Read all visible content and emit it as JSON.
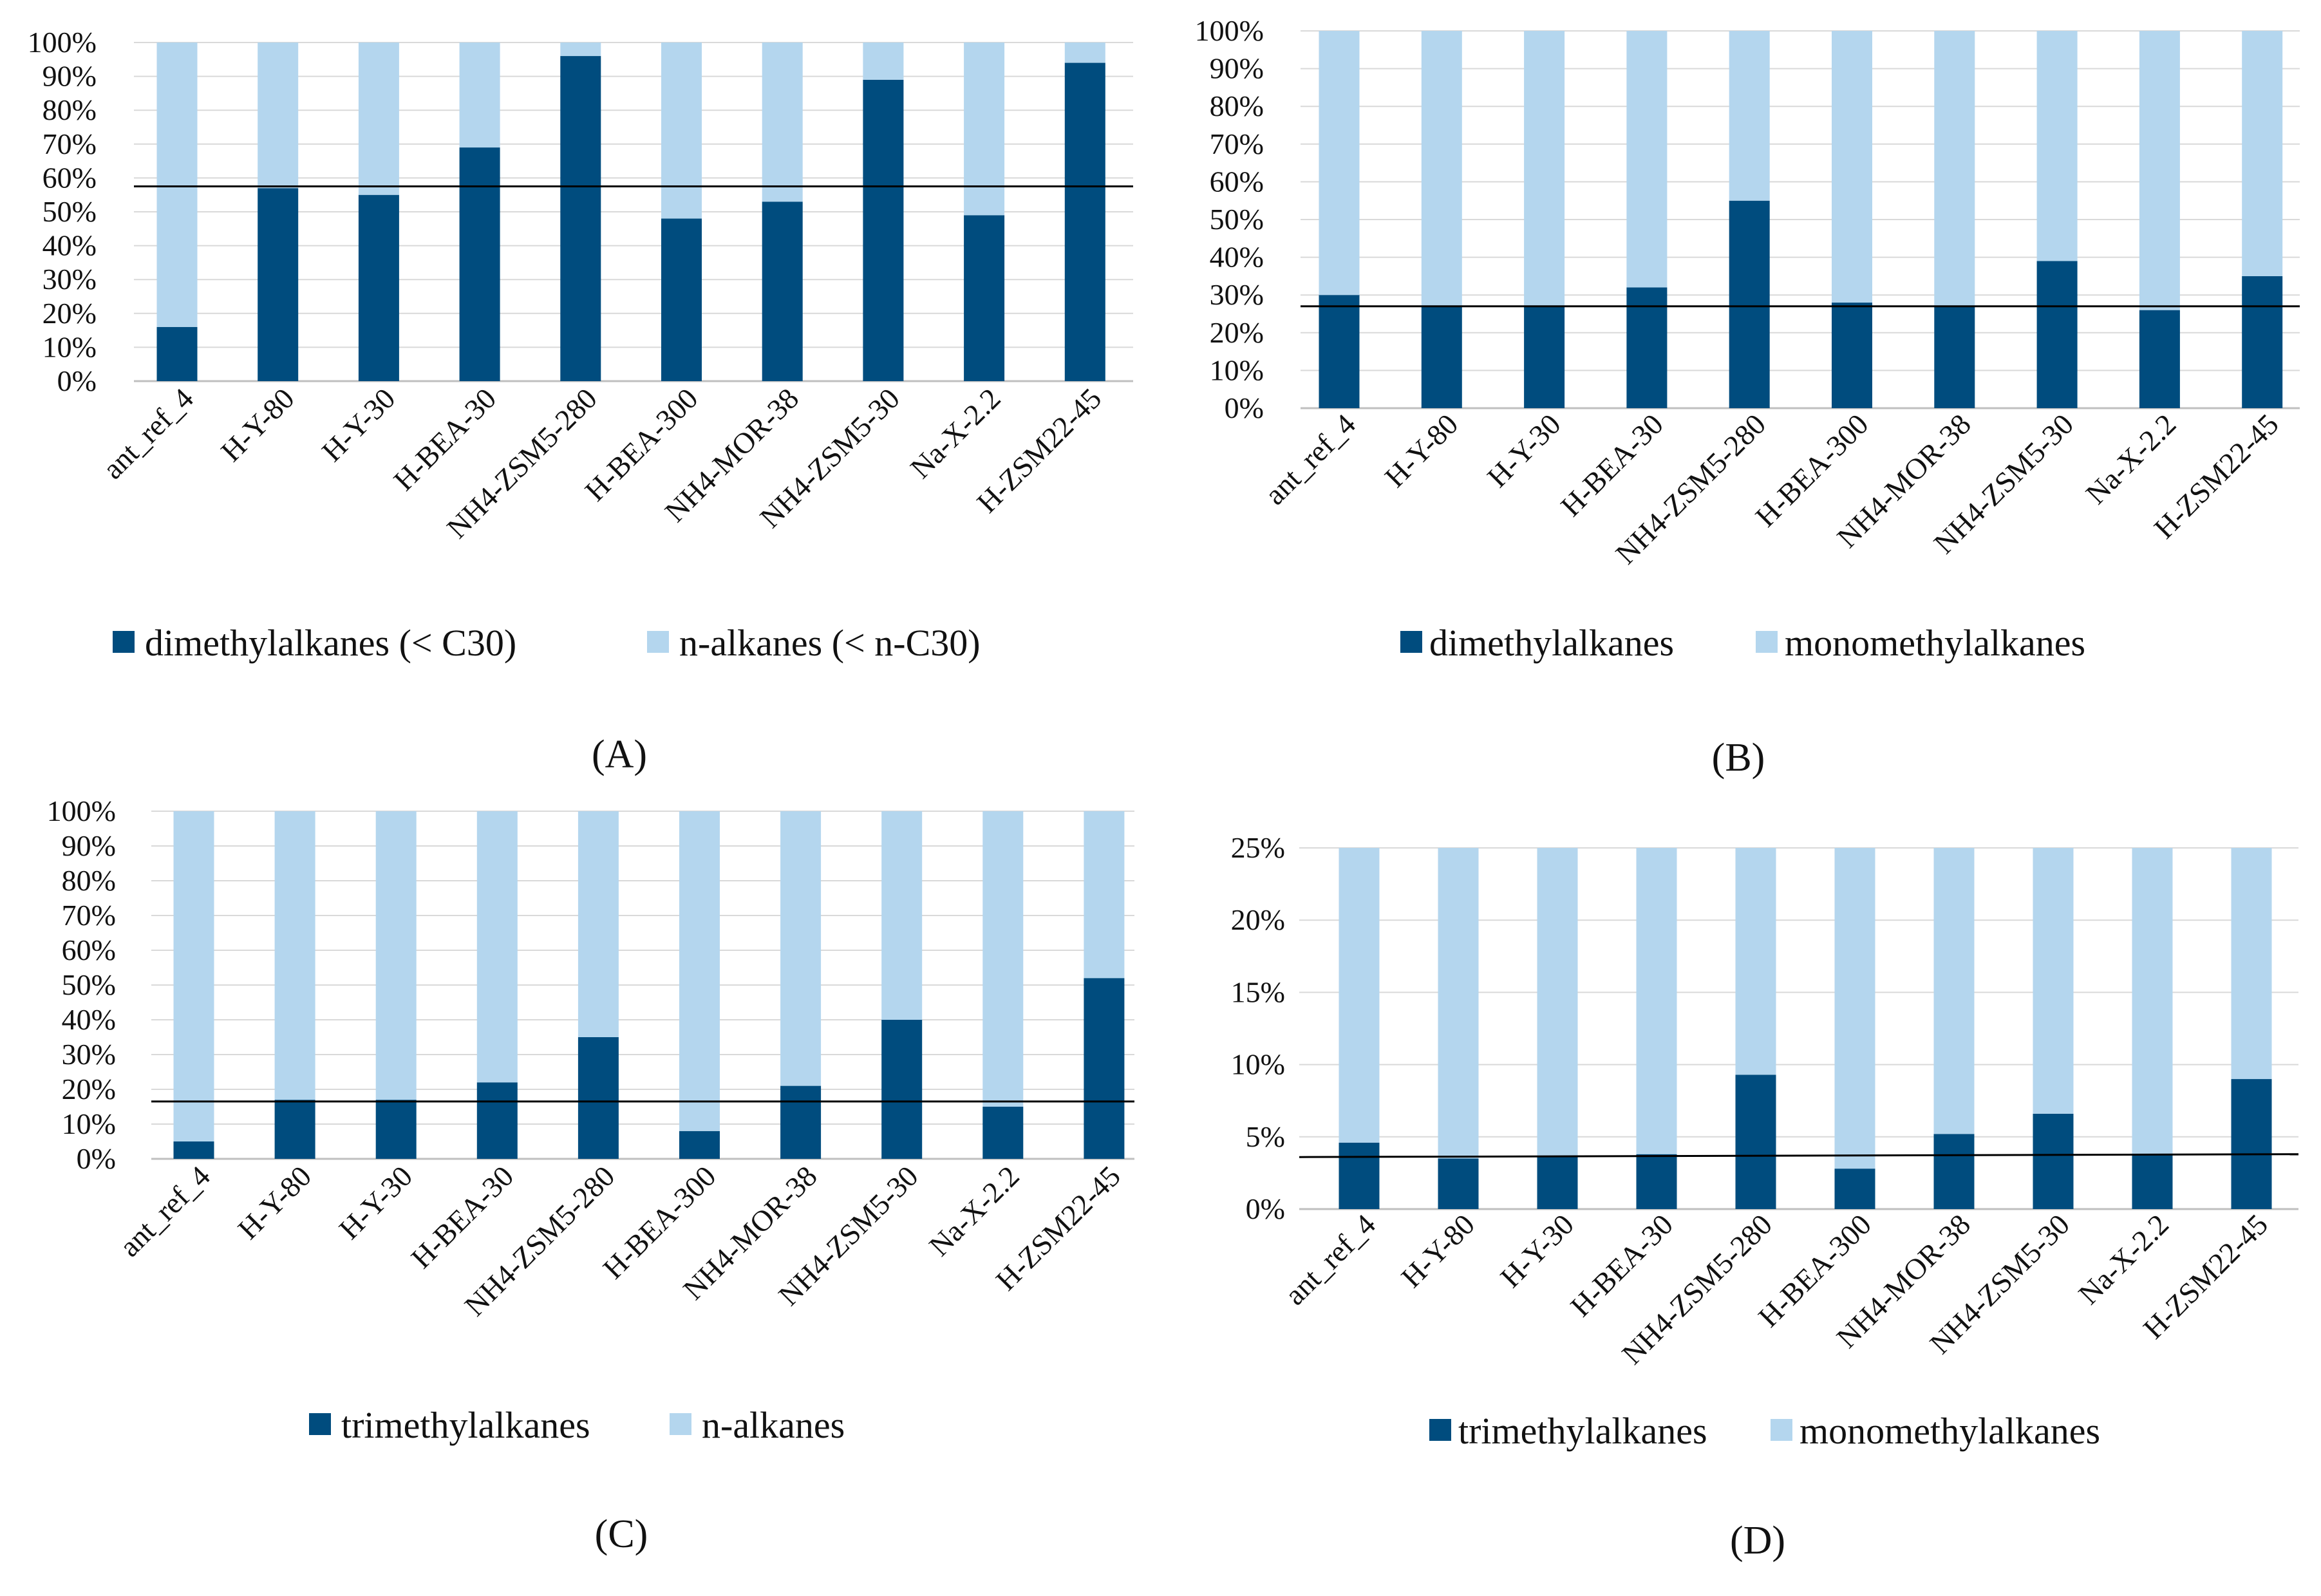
{
  "colors": {
    "dark": "#004c7e",
    "light": "#b4d6ee",
    "grid": "#d9d9d9",
    "axis": "#bfbfbf",
    "reference": "#000000"
  },
  "chart_data": [
    {
      "panel": "(A)",
      "type": "bar",
      "stacked": true,
      "categories": [
        "ant_ref_4",
        "H-Y-80",
        "H-Y-30",
        "H-BEA-30",
        "NH4-ZSM5-280",
        "H-BEA-300",
        "NH4-MOR-38",
        "NH4-ZSM5-30",
        "Na-X-2.2",
        "H-ZSM22-45"
      ],
      "series": [
        {
          "name": "dimethylalkanes (< C30)",
          "values": [
            16,
            57,
            55,
            69,
            96,
            48,
            53,
            89,
            49,
            94
          ]
        },
        {
          "name": "n-alkanes (< n-C30)",
          "values": [
            84,
            43,
            45,
            31,
            4,
            52,
            47,
            11,
            51,
            6
          ]
        }
      ],
      "ylim": [
        0,
        100
      ],
      "yticks": [
        "0%",
        "10%",
        "20%",
        "30%",
        "40%",
        "50%",
        "60%",
        "70%",
        "80%",
        "90%",
        "100%"
      ],
      "reference_line": 57.5,
      "legend_position": "bottom"
    },
    {
      "panel": "(B)",
      "type": "bar",
      "stacked": true,
      "categories": [
        "ant_ref_4",
        "H-Y-80",
        "H-Y-30",
        "H-BEA-30",
        "NH4-ZSM5-280",
        "H-BEA-300",
        "NH4-MOR-38",
        "NH4-ZSM5-30",
        "Na-X-2.2",
        "H-ZSM22-45"
      ],
      "series": [
        {
          "name": "dimethylalkanes",
          "values": [
            30,
            27,
            27,
            32,
            55,
            28,
            27,
            39,
            26,
            35
          ]
        },
        {
          "name": "monomethylalkanes",
          "values": [
            70,
            73,
            73,
            68,
            45,
            72,
            73,
            61,
            74,
            65
          ]
        }
      ],
      "ylim": [
        0,
        100
      ],
      "yticks": [
        "0%",
        "10%",
        "20%",
        "30%",
        "40%",
        "50%",
        "60%",
        "70%",
        "80%",
        "90%",
        "100%"
      ],
      "reference_line": 27,
      "legend_position": "bottom"
    },
    {
      "panel": "(C)",
      "type": "bar",
      "stacked": true,
      "categories": [
        "ant_ref_4",
        "H-Y-80",
        "H-Y-30",
        "H-BEA-30",
        "NH4-ZSM5-280",
        "H-BEA-300",
        "NH4-MOR-38",
        "NH4-ZSM5-30",
        "Na-X-2.2",
        "H-ZSM22-45"
      ],
      "series": [
        {
          "name": "trimethylalkanes",
          "values": [
            5,
            17,
            17,
            22,
            35,
            8,
            21,
            40,
            15,
            52
          ]
        },
        {
          "name": "n-alkanes",
          "values": [
            95,
            83,
            83,
            78,
            65,
            92,
            79,
            60,
            85,
            48
          ]
        }
      ],
      "ylim": [
        0,
        100
      ],
      "yticks": [
        "0%",
        "10%",
        "20%",
        "30%",
        "40%",
        "50%",
        "60%",
        "70%",
        "80%",
        "90%",
        "100%"
      ],
      "reference_line": 16.5,
      "legend_position": "bottom"
    },
    {
      "panel": "(D)",
      "type": "bar",
      "stacked": true,
      "categories": [
        "ant_ref_4",
        "H-Y-80",
        "H-Y-30",
        "H-BEA-30",
        "NH4-ZSM5-280",
        "H-BEA-300",
        "NH4-MOR-38",
        "NH4-ZSM5-30",
        "Na-X-2.2",
        "H-ZSM22-45"
      ],
      "series": [
        {
          "name": "trimethylalkanes",
          "values": [
            4.6,
            3.5,
            3.6,
            3.8,
            9.3,
            2.8,
            5.2,
            6.6,
            3.8,
            9.0
          ]
        },
        {
          "name": "monomethylalkanes",
          "values": [
            20.4,
            21.5,
            21.4,
            21.2,
            15.7,
            22.2,
            19.8,
            18.4,
            21.2,
            16.0
          ]
        }
      ],
      "ylim": [
        0,
        25
      ],
      "yticks": [
        "0%",
        "5%",
        "10%",
        "15%",
        "20%",
        "25%"
      ],
      "reference_line": [
        3.6,
        3.8
      ],
      "legend_position": "bottom"
    }
  ]
}
